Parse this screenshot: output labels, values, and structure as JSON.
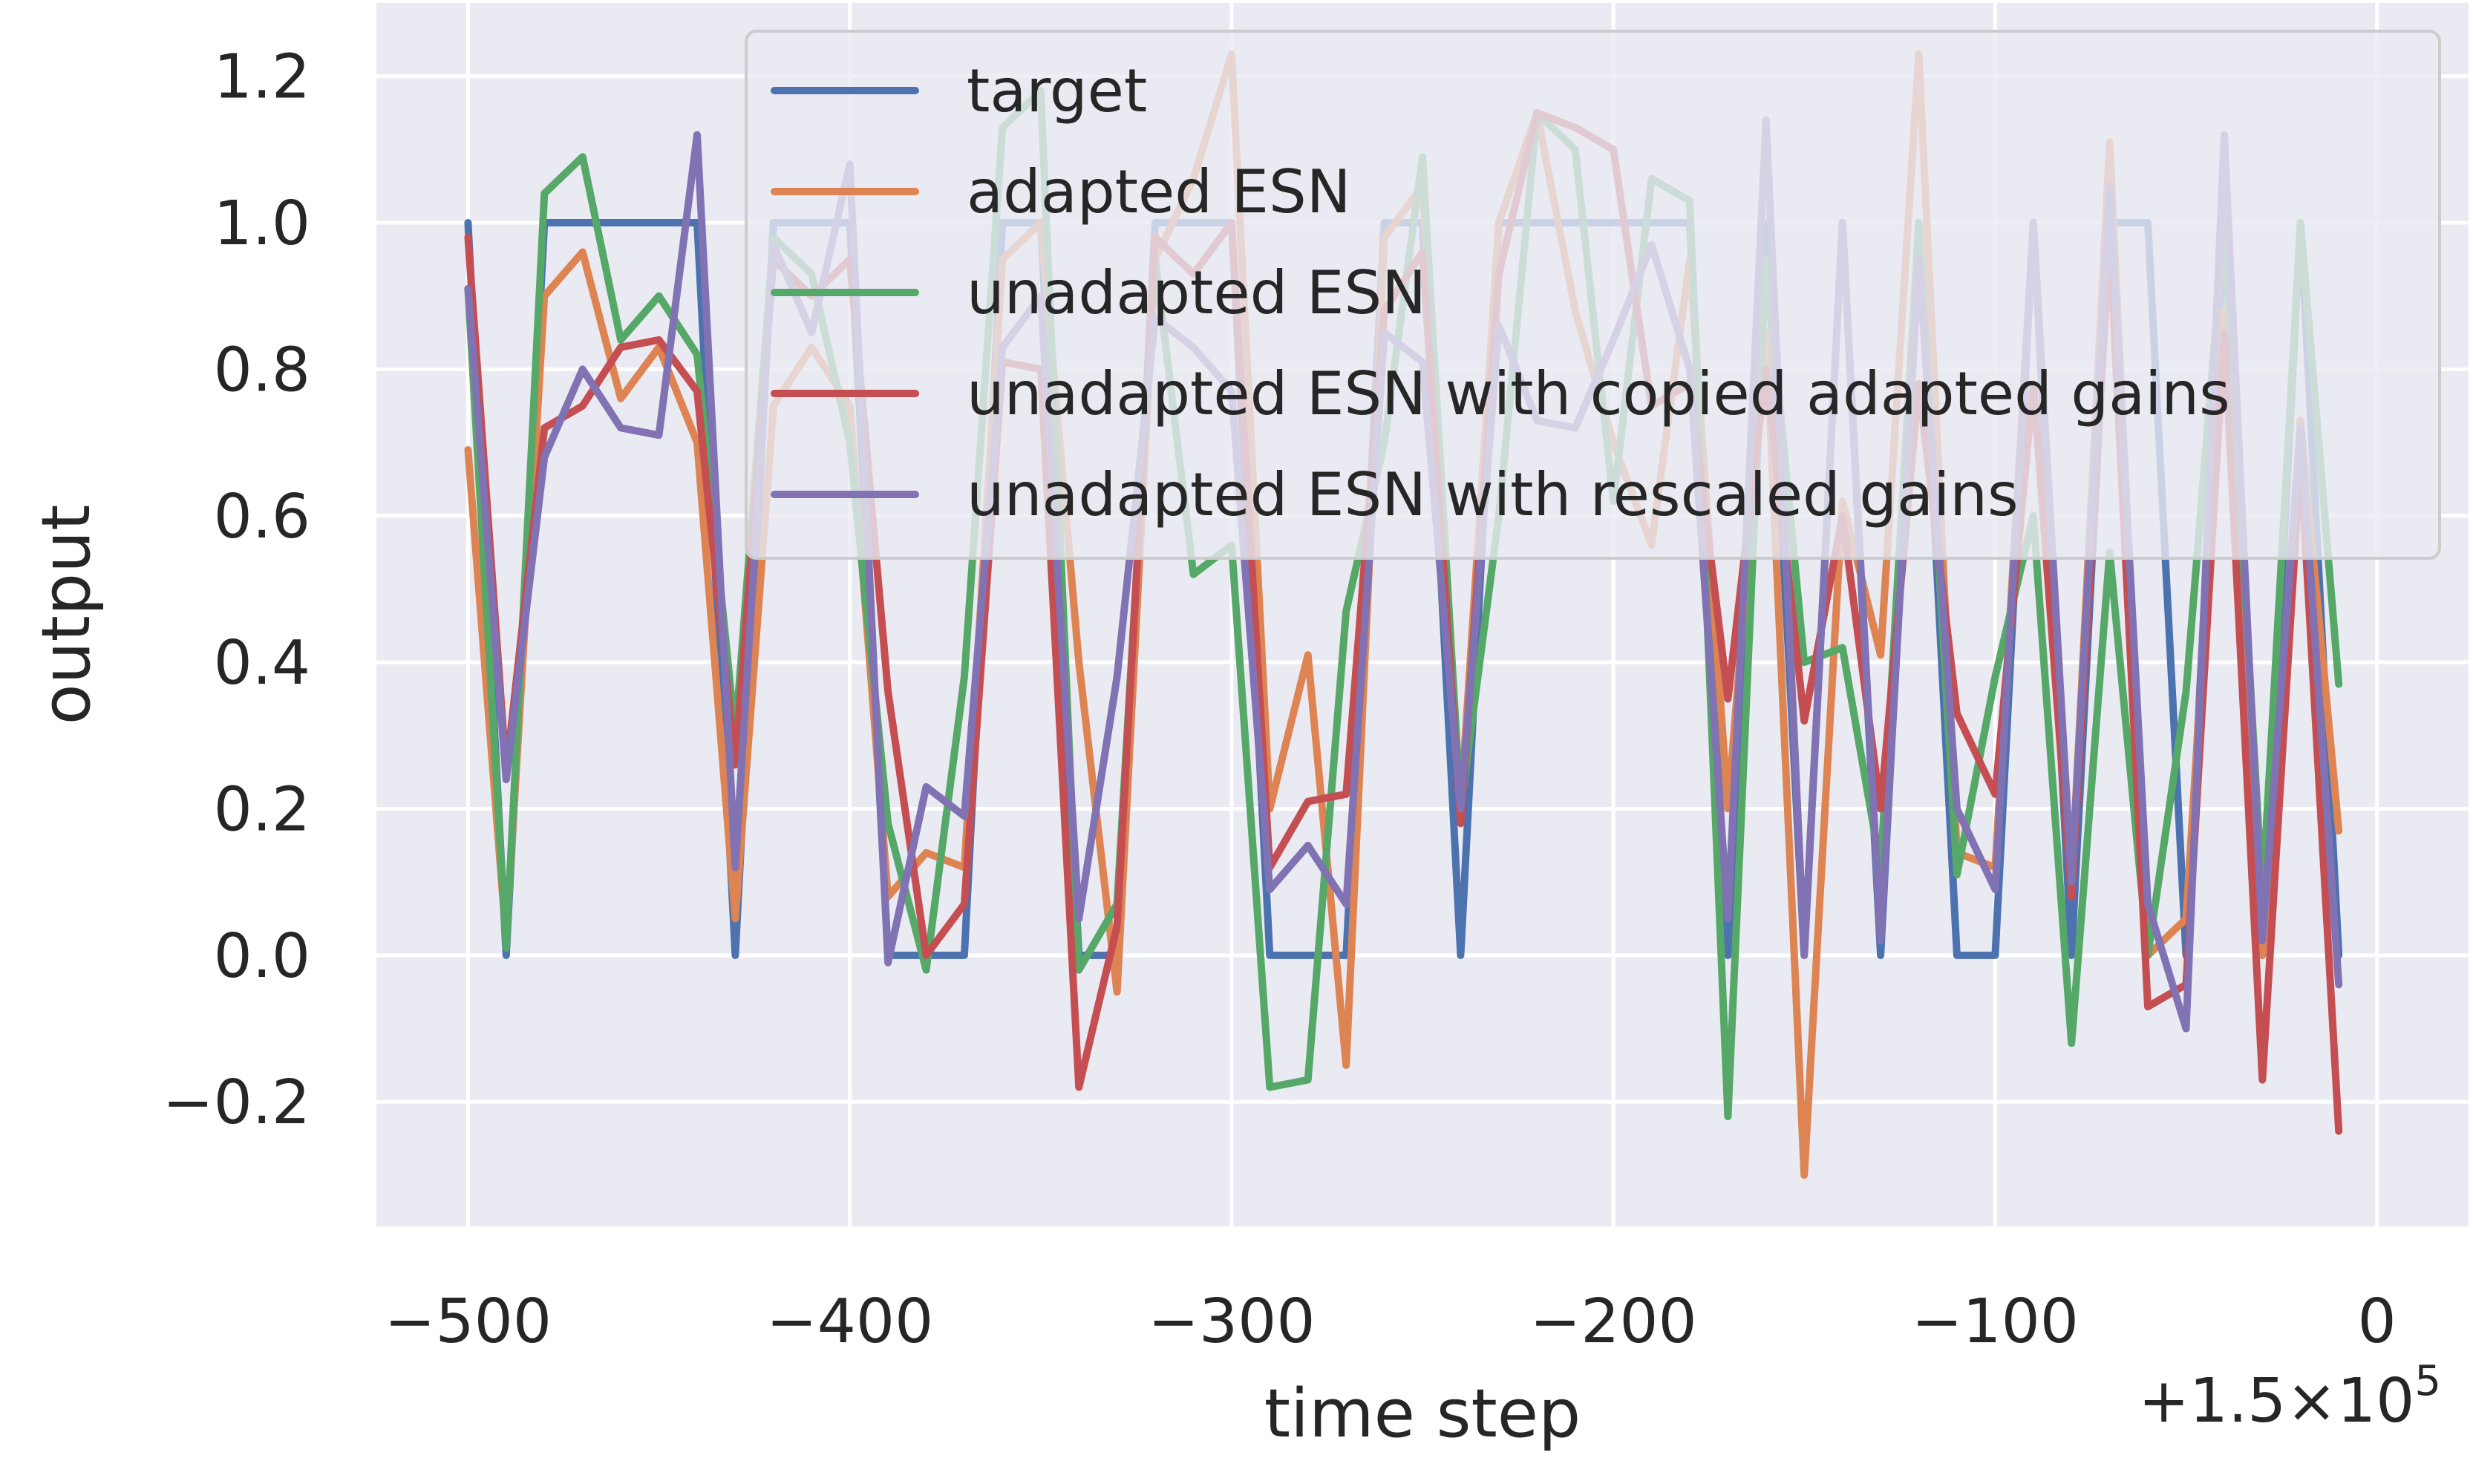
{
  "chart_data": {
    "type": "line",
    "xlabel": "time step",
    "ylabel": "output",
    "x_offset": {
      "base": "+1.5×10",
      "exponent": "5"
    },
    "xlim": [
      -524,
      24
    ],
    "ylim": [
      -0.37,
      1.3
    ],
    "x_ticks": [
      -500,
      -400,
      -300,
      -200,
      -100,
      0
    ],
    "x_tick_labels": [
      "−500",
      "−400",
      "−300",
      "−200",
      "−100",
      "0"
    ],
    "y_ticks": [
      -0.2,
      0.0,
      0.2,
      0.4,
      0.6,
      0.8,
      1.0,
      1.2
    ],
    "y_tick_labels": [
      "−0.2",
      "0.0",
      "0.2",
      "0.4",
      "0.6",
      "0.8",
      "1.0",
      "1.2"
    ],
    "grid": true,
    "legend_position": "top-right",
    "x": [
      -500,
      -490,
      -480,
      -470,
      -460,
      -450,
      -440,
      -430,
      -420,
      -410,
      -400,
      -390,
      -380,
      -370,
      -360,
      -350,
      -340,
      -330,
      -320,
      -310,
      -300,
      -290,
      -280,
      -270,
      -260,
      -250,
      -240,
      -230,
      -220,
      -210,
      -200,
      -190,
      -180,
      -170,
      -160,
      -150,
      -140,
      -130,
      -120,
      -110,
      -100,
      -90,
      -80,
      -70,
      -60,
      -50,
      -40,
      -30,
      -20,
      -10
    ],
    "series": [
      {
        "name": "target",
        "color": "#4c72b0",
        "values": [
          1,
          0,
          1,
          1,
          1,
          1,
          1,
          0,
          1,
          1,
          1,
          0,
          0,
          0,
          1,
          1,
          0,
          0,
          1,
          1,
          1,
          0,
          0,
          0,
          1,
          1,
          0,
          1,
          1,
          1,
          1,
          1,
          1,
          0,
          1,
          0,
          1,
          0,
          1,
          0,
          0,
          1,
          0,
          1,
          1,
          0,
          1,
          0,
          1,
          0
        ]
      },
      {
        "name": "adapted ESN",
        "color": "#dd8452",
        "values": [
          0.69,
          0.02,
          0.9,
          0.96,
          0.76,
          0.83,
          0.7,
          0.05,
          0.75,
          0.83,
          0.75,
          0.08,
          0.14,
          0.12,
          0.95,
          1.0,
          0.4,
          -0.05,
          0.95,
          1.06,
          1.23,
          0.2,
          0.41,
          -0.15,
          0.98,
          1.05,
          0.2,
          1.0,
          1.15,
          0.88,
          0.7,
          0.56,
          0.95,
          0.2,
          0.85,
          -0.3,
          0.62,
          0.41,
          1.23,
          0.14,
          0.12,
          1.0,
          0.1,
          1.11,
          0.0,
          0.05,
          0.88,
          0.0,
          0.73,
          0.17
        ]
      },
      {
        "name": "unadapted ESN",
        "color": "#55a868",
        "values": [
          0.91,
          0.01,
          1.04,
          1.09,
          0.84,
          0.9,
          0.82,
          0.3,
          0.98,
          0.93,
          0.7,
          0.18,
          -0.02,
          0.38,
          1.13,
          1.18,
          -0.02,
          0.07,
          0.95,
          0.52,
          0.56,
          -0.18,
          -0.17,
          0.47,
          0.7,
          1.09,
          0.2,
          0.6,
          1.15,
          1.1,
          0.62,
          1.06,
          1.03,
          -0.22,
          0.95,
          0.4,
          0.42,
          0.12,
          1.0,
          0.11,
          0.38,
          0.6,
          -0.12,
          0.55,
          0.0,
          0.36,
          1.0,
          0.08,
          1.0,
          0.37
        ]
      },
      {
        "name": "unadapted ESN with copied adapted gains",
        "color": "#c44e52",
        "values": [
          0.98,
          0.25,
          0.72,
          0.75,
          0.83,
          0.84,
          0.77,
          0.26,
          0.95,
          0.9,
          0.95,
          0.36,
          0.0,
          0.07,
          0.81,
          0.8,
          -0.18,
          0.04,
          0.98,
          0.93,
          1.0,
          0.12,
          0.21,
          0.22,
          0.88,
          0.96,
          0.18,
          0.93,
          1.15,
          1.13,
          1.1,
          0.75,
          0.78,
          0.35,
          0.8,
          0.32,
          0.6,
          0.2,
          0.78,
          0.33,
          0.22,
          0.78,
          0.08,
          0.98,
          -0.07,
          -0.04,
          0.85,
          -0.17,
          0.68,
          -0.24
        ]
      },
      {
        "name": "unadapted ESN with rescaled gains",
        "color": "#8172b3",
        "values": [
          0.91,
          0.24,
          0.68,
          0.8,
          0.72,
          0.71,
          1.12,
          0.12,
          0.97,
          0.85,
          1.08,
          -0.01,
          0.23,
          0.19,
          0.83,
          0.9,
          0.05,
          0.38,
          0.87,
          0.83,
          0.77,
          0.09,
          0.15,
          0.07,
          0.85,
          0.81,
          0.2,
          0.86,
          0.73,
          0.72,
          0.84,
          0.97,
          0.8,
          0.05,
          1.14,
          0.0,
          1.0,
          0.02,
          0.95,
          0.2,
          0.09,
          1.0,
          0.1,
          1.05,
          0.07,
          -0.1,
          1.12,
          0.02,
          0.72,
          -0.04
        ]
      }
    ]
  }
}
